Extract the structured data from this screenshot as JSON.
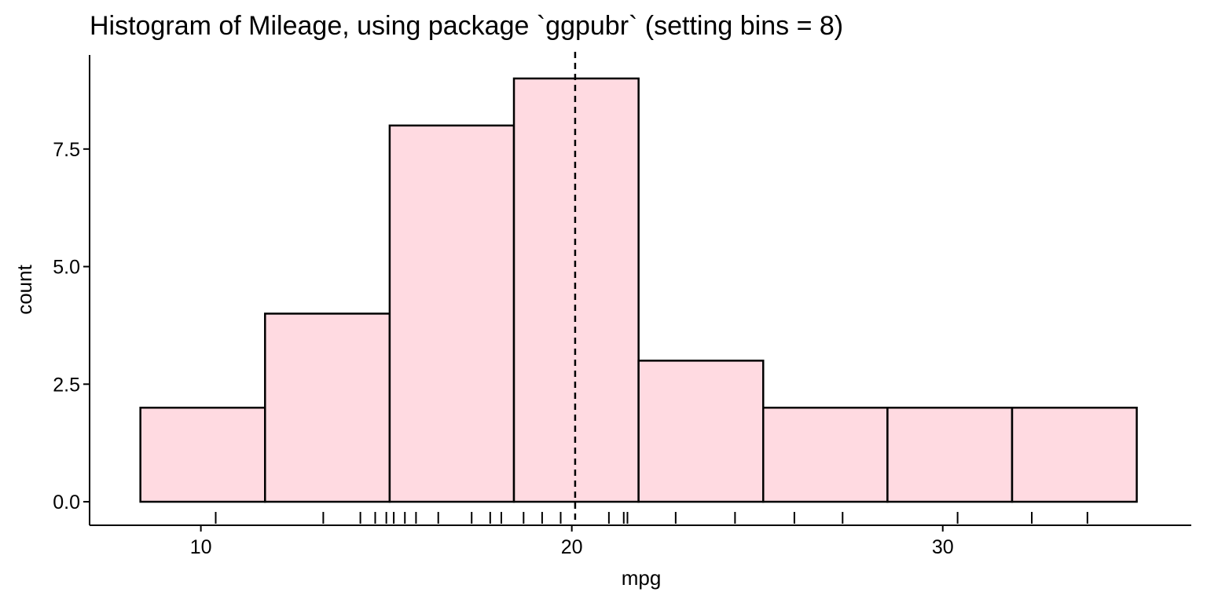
{
  "chart_data": {
    "type": "bar",
    "subtype": "histogram",
    "title": "Histogram of Mileage, using package `ggpubr` (setting bins = 8)",
    "xlabel": "mpg",
    "ylabel": "count",
    "bins": [
      {
        "x0": 8.37,
        "x1": 11.73,
        "count": 2
      },
      {
        "x0": 11.73,
        "x1": 15.09,
        "count": 4
      },
      {
        "x0": 15.09,
        "x1": 18.44,
        "count": 8
      },
      {
        "x0": 18.44,
        "x1": 21.8,
        "count": 9
      },
      {
        "x0": 21.8,
        "x1": 25.16,
        "count": 3
      },
      {
        "x0": 25.16,
        "x1": 28.51,
        "count": 2
      },
      {
        "x0": 28.51,
        "x1": 31.87,
        "count": 2
      },
      {
        "x0": 31.87,
        "x1": 35.23,
        "count": 2
      }
    ],
    "mean_line": 20.09,
    "rug": [
      10.4,
      13.3,
      14.3,
      14.7,
      15.0,
      15.2,
      15.5,
      15.8,
      16.4,
      17.3,
      17.8,
      18.1,
      18.7,
      19.2,
      19.7,
      21.0,
      21.4,
      21.5,
      22.8,
      24.4,
      26.0,
      27.3,
      30.4,
      32.4,
      33.9
    ],
    "xlim": [
      7.0,
      36.7
    ],
    "ylim": [
      -0.5,
      9.5
    ],
    "xticks": [
      10,
      20,
      30
    ],
    "xtick_labels": [
      "10",
      "20",
      "30"
    ],
    "yticks": [
      0,
      2.5,
      5,
      7.5
    ],
    "ytick_labels": [
      "0.0",
      "2.5",
      "5.0",
      "7.5"
    ],
    "fill_color": "#FFDAE1",
    "edge_color": "#000000",
    "grid": false,
    "legend": "none"
  }
}
